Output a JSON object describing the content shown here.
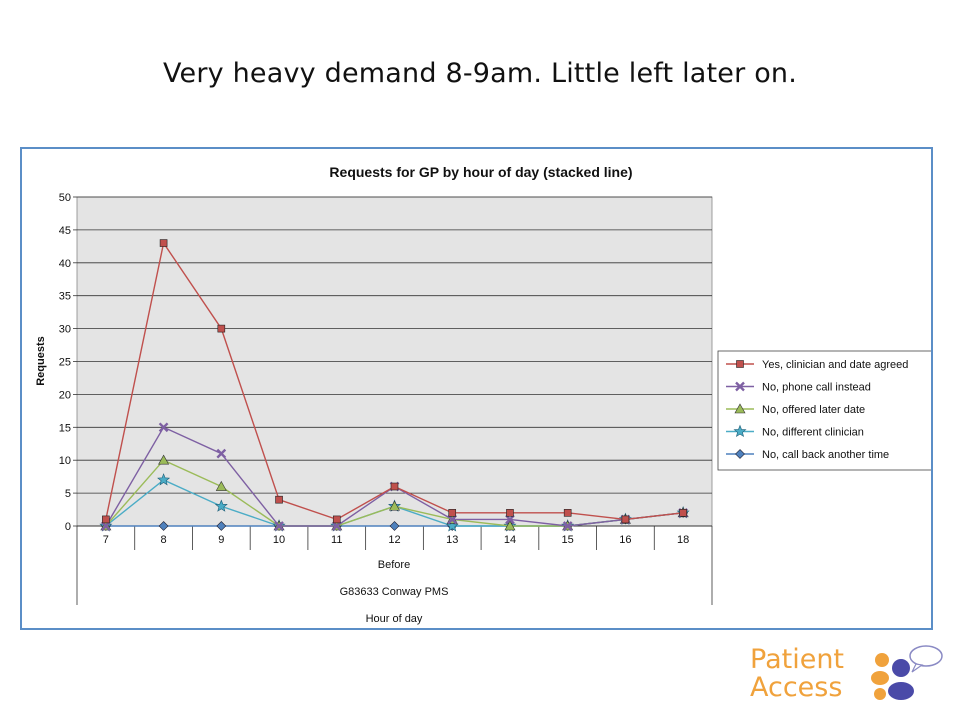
{
  "slide": {
    "title": "Very heavy demand 8-9am.  Little left later on."
  },
  "logo": {
    "line1": "Patient",
    "line2": "Access"
  },
  "colors": {
    "frame": "#5b8ec7",
    "plot_bg": "#e4e4e4",
    "logo_orange": "#f0a23c",
    "logo_blue": "#4a4aa8"
  },
  "chart_data": {
    "type": "line",
    "title": "Requests for GP by hour of day (stacked line)",
    "ylabel": "Requests",
    "xlabel": "Hour of day",
    "ylim": [
      0,
      50
    ],
    "yticks": [
      0,
      5,
      10,
      15,
      20,
      25,
      30,
      35,
      40,
      45,
      50
    ],
    "categories": [
      "7",
      "8",
      "9",
      "10",
      "11",
      "12",
      "13",
      "14",
      "15",
      "16",
      "18"
    ],
    "category_group": "Before",
    "practice_label": "G83633 Conway PMS",
    "grid": true,
    "legend_position": "right",
    "series": [
      {
        "name": "Yes, clinician and date agreed",
        "color": "#c0504d",
        "marker": "square",
        "values": [
          1,
          43,
          30,
          4,
          1,
          6,
          2,
          2,
          2,
          1,
          2
        ]
      },
      {
        "name": "No, phone call instead",
        "color": "#7e60a3",
        "marker": "x",
        "values": [
          0,
          15,
          11,
          0,
          0,
          6,
          1,
          1,
          0,
          1,
          2
        ]
      },
      {
        "name": "No, offered later date",
        "color": "#9bbb59",
        "marker": "triangle",
        "values": [
          0,
          10,
          6,
          0,
          0,
          3,
          1,
          0,
          0,
          1,
          2
        ]
      },
      {
        "name": "No, different clinician",
        "color": "#4bacc6",
        "marker": "star",
        "values": [
          0,
          7,
          3,
          0,
          0,
          3,
          0,
          0,
          0,
          1,
          2
        ]
      },
      {
        "name": "No, call back another time",
        "color": "#4f81bd",
        "marker": "diamond",
        "values": [
          0,
          0,
          0,
          0,
          0,
          0,
          0,
          0,
          0,
          1,
          2
        ]
      }
    ]
  }
}
